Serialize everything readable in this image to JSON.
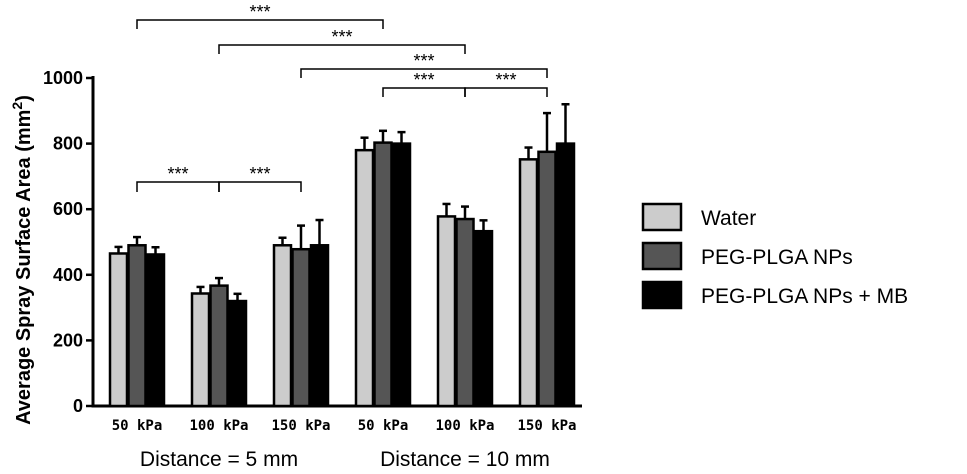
{
  "chart_data": {
    "type": "bar",
    "ylabel": "Average Spray Surface Area (mm",
    "ylabel_sup": "2",
    "ylabel_close": ")",
    "ylim": [
      0,
      1000
    ],
    "yticks": [
      "0",
      "200",
      "400",
      "600",
      "800",
      "1000"
    ],
    "categories": [
      "50 kPa",
      "100 kPa",
      "150 kPa",
      "50 kPa",
      "100 kPa",
      "150 kPa"
    ],
    "groups": [
      {
        "label": "Distance = 5 mm",
        "categories": [
          0,
          1,
          2
        ]
      },
      {
        "label": "Distance = 10 mm",
        "categories": [
          3,
          4,
          5
        ]
      }
    ],
    "series": [
      {
        "name": "Water",
        "color": "#cccccc",
        "values": [
          465,
          343,
          490,
          780,
          578,
          752
        ],
        "errors": [
          20,
          20,
          23,
          38,
          38,
          36
        ]
      },
      {
        "name": "PEG-PLGA NPs",
        "color": "#555555",
        "values": [
          490,
          367,
          478,
          803,
          570,
          775
        ],
        "errors": [
          25,
          23,
          72,
          36,
          38,
          118
        ]
      },
      {
        "name": "PEG-PLGA NPs + MB",
        "color": "#000000",
        "values": [
          462,
          320,
          490,
          800,
          533,
          800
        ],
        "errors": [
          22,
          22,
          77,
          35,
          33,
          120
        ]
      }
    ],
    "legend_position": "right",
    "significance": [
      {
        "label": "***",
        "from": 0,
        "to": 3
      },
      {
        "label": "***",
        "from": 1,
        "to": 4
      },
      {
        "label": "***",
        "from": 2,
        "to": 5
      },
      {
        "label": "***",
        "from": 3,
        "to": 4
      },
      {
        "label": "***",
        "from": 4,
        "to": 5
      },
      {
        "label": "***",
        "from": 0,
        "to": 1
      },
      {
        "label": "***",
        "from": 1,
        "to": 2
      }
    ]
  }
}
